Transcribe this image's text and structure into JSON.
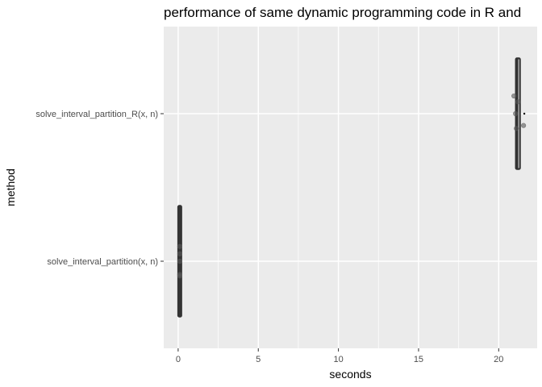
{
  "chart_data": {
    "type": "boxplot",
    "title": "performance of same dynamic programming code in R and",
    "xlabel": "seconds",
    "ylabel": "method",
    "x_range": [
      -0.9,
      22.4
    ],
    "x_ticks": [
      0,
      5,
      10,
      15,
      20
    ],
    "x_tick_labels": [
      "0",
      "5",
      "10",
      "15",
      "20"
    ],
    "categories": [
      "solve_interval_partition_R(x, n)",
      "solve_interval_partition(x, n)"
    ],
    "orientation": "horizontal",
    "grid": true,
    "background": "#ebebeb",
    "gridline_color": "#ffffff",
    "box_color": "#333333",
    "point_color": "#595959",
    "series": [
      {
        "category": "solve_interval_partition_R(x, n)",
        "whisker_low": 21.15,
        "q1": 21.15,
        "median": 21.15,
        "q3": 21.25,
        "whisker_high": 21.25,
        "points": [
          {
            "x": 20.95,
            "y_offset": 0.12
          },
          {
            "x": 21.2,
            "y_offset": 0.08
          },
          {
            "x": 21.05,
            "y_offset": 0.0
          },
          {
            "x": 21.1,
            "y_offset": -0.1
          },
          {
            "x": 21.55,
            "y_offset": -0.08
          }
        ],
        "outliers": [
          21.6
        ]
      },
      {
        "category": "solve_interval_partition(x, n)",
        "whisker_low": 0.08,
        "q1": 0.08,
        "median": 0.08,
        "q3": 0.12,
        "whisker_high": 0.12,
        "points": [
          {
            "x": 0.1,
            "y_offset": 0.1
          },
          {
            "x": 0.1,
            "y_offset": 0.05
          },
          {
            "x": 0.1,
            "y_offset": 0.0
          },
          {
            "x": 0.1,
            "y_offset": -0.09
          },
          {
            "x": 0.1,
            "y_offset": -0.1
          }
        ],
        "outliers": []
      }
    ]
  }
}
